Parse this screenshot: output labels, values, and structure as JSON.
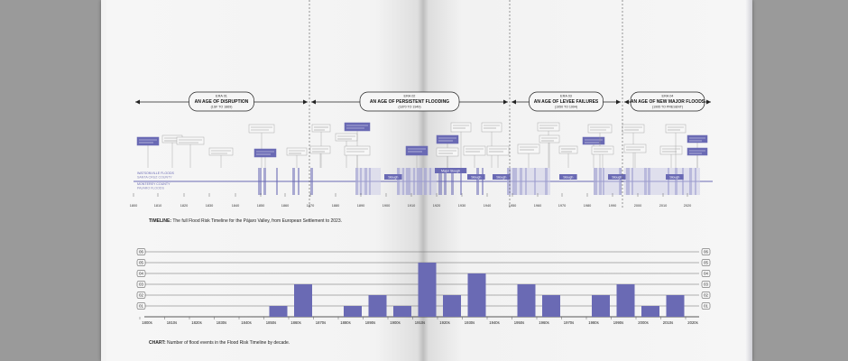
{
  "timeline": {
    "eras": [
      {
        "number": "ERA 01",
        "title": "AN AGE OF DISRUPTION",
        "years": "(1SF TO 1869)"
      },
      {
        "number": "ERA 02",
        "title": "AN AGE OF PERSISTENT FLOODING",
        "years": "(1870 TO 1949)"
      },
      {
        "number": "ERA 03",
        "title": "AN AGE OF LEVEE FAILURES",
        "years": "(1950 TO 1994)"
      },
      {
        "number": "ERA 04",
        "title": "AN AGE OF NEW MAJOR FLOODS",
        "years": "(1995 TO PRESENT)"
      }
    ],
    "row_labels": [
      "WATSONVILLE FLOODS",
      "SANTA CRUZ COUNTY",
      "MONTEREY COUNTY",
      "PAJARO FLOODS"
    ],
    "year_ticks": [
      "1800",
      "1810",
      "1820",
      "1830",
      "1840",
      "1850",
      "1860",
      "1870",
      "1880",
      "1890",
      "1900",
      "1910",
      "1920",
      "1930",
      "1940",
      "1950",
      "1960",
      "1970",
      "1980",
      "1990",
      "2000",
      "2010",
      "2020"
    ],
    "tag_labels": [
      "Slough",
      "Slough",
      "Slough",
      "Slough",
      "Major Slough",
      "Slough",
      "Slough"
    ],
    "caption_bold": "TIMELINE:",
    "caption_text": "The full Flood Risk Timeline for the Pájaro Valley, from European Settlement to 2023."
  },
  "chart_data": {
    "type": "bar",
    "categories": [
      "1800s",
      "1810s",
      "1820s",
      "1830s",
      "1840s",
      "1850s",
      "1860s",
      "1870s",
      "1880s",
      "1890s",
      "1900s",
      "1910s",
      "1920s",
      "1930s",
      "1940s",
      "1950s",
      "1960s",
      "1970s",
      "1980s",
      "1990s",
      "2000s",
      "2010s",
      "2020s"
    ],
    "values": [
      0,
      0,
      0,
      0,
      0,
      1,
      3,
      0,
      1,
      2,
      1,
      5,
      2,
      4,
      0,
      3,
      2,
      0,
      2,
      3,
      1,
      2,
      0
    ],
    "ylim": [
      0,
      6
    ],
    "yticks": [
      "01",
      "02",
      "03",
      "04",
      "05",
      "06"
    ],
    "grid": true,
    "caption_bold": "CHART:",
    "caption_text": "Number of flood events in the Flood Risk Timeline by decade.",
    "bar_color": "#6a6ab4"
  },
  "colors": {
    "accent": "#6a6ab4",
    "accent_light": "#c9c9e6",
    "page": "#f3f3f3",
    "background": "#9a9a9a"
  }
}
